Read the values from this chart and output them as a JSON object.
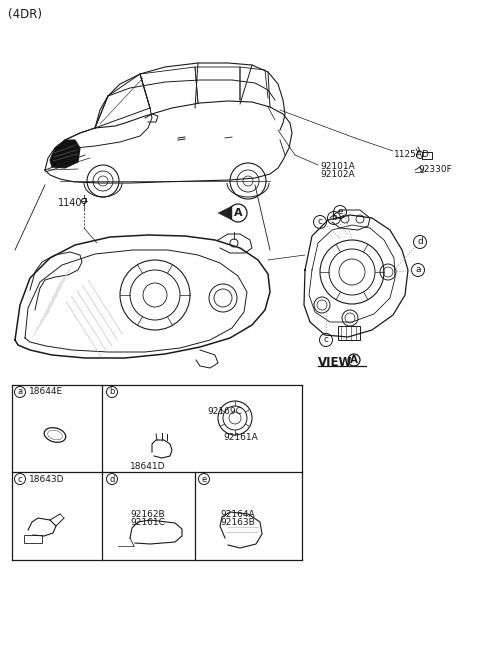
{
  "bg_color": "#ffffff",
  "line_color": "#1a1a1a",
  "gray_color": "#888888",
  "labels": {
    "title": "(4DR)",
    "part_11407": "11407",
    "part_92101A": "92101A",
    "part_92102A": "92102A",
    "part_1125AD": "1125AD",
    "part_92330F": "92330F",
    "part_A_label": "A",
    "part_view_a": "VIEW",
    "cell_a_label": "a",
    "cell_a_part": "18644E",
    "cell_b_label": "b",
    "cell_c_label": "c",
    "cell_c_part": "18643D",
    "cell_d_label": "d",
    "cell_e_label": "e",
    "part_92169C": "92169C",
    "part_92161A": "92161A",
    "part_18641D": "18641D",
    "part_92162B": "92162B",
    "part_92161C": "92161C",
    "part_92164A": "92164A",
    "part_92163B": "92163B"
  }
}
